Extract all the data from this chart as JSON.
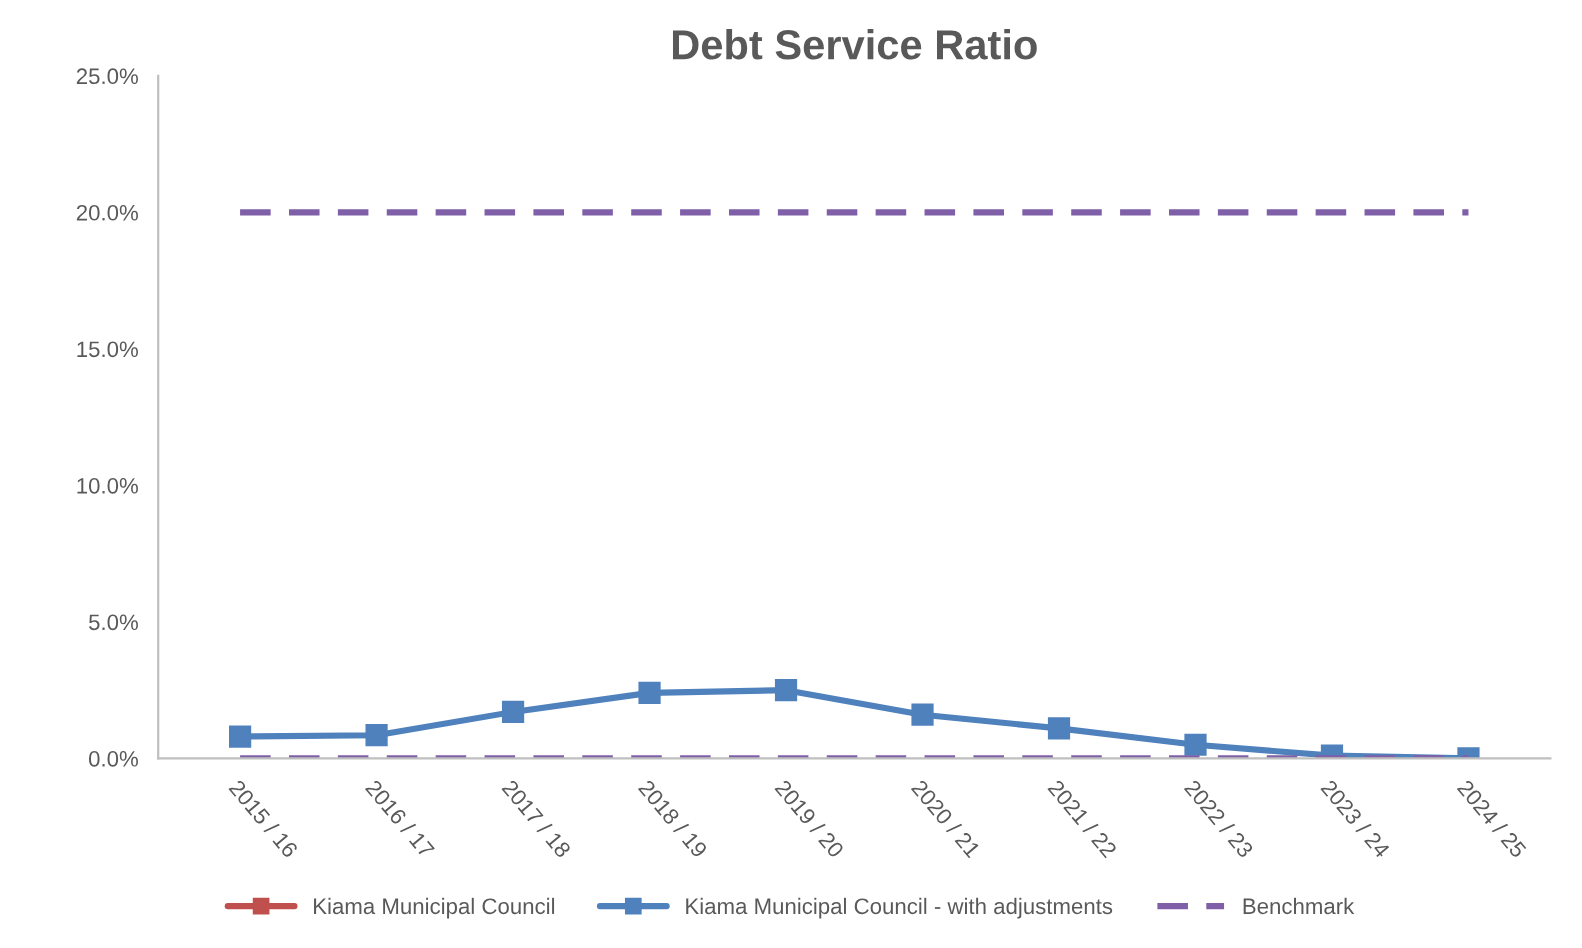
{
  "chart_data": {
    "type": "line",
    "title": "Debt Service Ratio",
    "categories": [
      "2015 / 16",
      "2016 / 17",
      "2017 / 18",
      "2018 / 19",
      "2019 / 20",
      "2020 / 21",
      "2021 / 22",
      "2022 / 23",
      "2023 / 24",
      "2024 / 25"
    ],
    "series": [
      {
        "name": "Kiama Municipal Council",
        "color": "#c0504d",
        "marker": "square",
        "line_style": "solid",
        "values": [
          null,
          null,
          null,
          null,
          null,
          null,
          null,
          null,
          null,
          null
        ]
      },
      {
        "name": "Kiama Municipal Council - with adjustments",
        "color": "#4f81bd",
        "marker": "square",
        "line_style": "solid",
        "values": [
          0.8,
          0.85,
          1.7,
          2.4,
          2.5,
          1.6,
          1.1,
          0.5,
          0.1,
          0.0
        ]
      },
      {
        "name": "Benchmark",
        "color": "#7f5fa8",
        "marker": "none",
        "line_style": "dashed",
        "values": [
          20,
          20,
          20,
          20,
          20,
          20,
          20,
          20,
          20,
          20
        ]
      },
      {
        "color": "#7f5fa8",
        "marker": "none",
        "line_style": "dashed",
        "values": [
          0,
          0,
          0,
          0,
          0,
          0,
          0,
          0,
          0,
          0
        ]
      }
    ],
    "ylim": [
      0,
      25
    ],
    "yticks": [
      {
        "value": 0,
        "label": "0.0%"
      },
      {
        "value": 5,
        "label": "5.0%"
      },
      {
        "value": 10,
        "label": "10.0%"
      },
      {
        "value": 15,
        "label": "15.0%"
      },
      {
        "value": 20,
        "label": "20.0%"
      },
      {
        "value": 25,
        "label": "25.0%"
      }
    ],
    "grid": false,
    "legend": "bottom"
  }
}
